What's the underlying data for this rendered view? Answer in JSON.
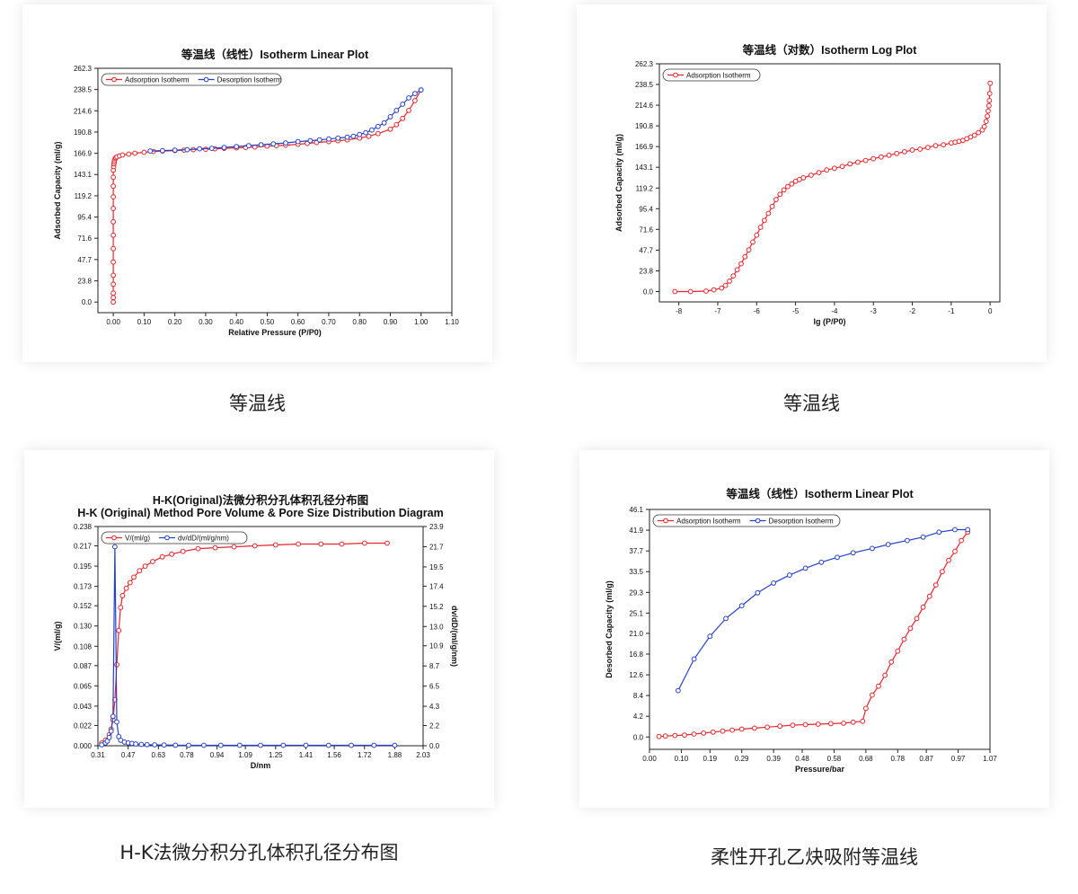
{
  "captions": [
    "等温线",
    "等温线",
    "H-K法微分积分孔体积孔径分布图",
    "柔性开孔乙炔吸附等温线"
  ],
  "chart_data": [
    {
      "type": "line",
      "title": "等温线（线性）Isotherm Linear Plot",
      "xlabel": "Relative Pressure (P/P0)",
      "ylabel": "Adsorbed Capacity (ml/g)",
      "xlim": [
        -0.05,
        1.1
      ],
      "ylim": [
        -11.9,
        262.3
      ],
      "xticks": [
        "0.00",
        "0.10",
        "0.20",
        "0.30",
        "0.40",
        "0.50",
        "0.60",
        "0.70",
        "0.80",
        "0.90",
        "1.00",
        "1.10"
      ],
      "yticks": [
        "0.0",
        "23.8",
        "47.7",
        "71.6",
        "95.4",
        "119.2",
        "143.1",
        "166.9",
        "190.8",
        "214.6",
        "238.5",
        "262.3"
      ],
      "legend": "top-left",
      "series": [
        {
          "name": "Adsorption Isotherm",
          "color": "#e8242c",
          "x": [
            0,
            0,
            0,
            0,
            0,
            0,
            0,
            0,
            0,
            0,
            0,
            0,
            0,
            0,
            0.001,
            0.002,
            0.003,
            0.004,
            0.006,
            0.008,
            0.012,
            0.02,
            0.03,
            0.05,
            0.07,
            0.1,
            0.13,
            0.16,
            0.2,
            0.23,
            0.26,
            0.3,
            0.33,
            0.36,
            0.4,
            0.43,
            0.46,
            0.5,
            0.53,
            0.56,
            0.6,
            0.63,
            0.66,
            0.7,
            0.73,
            0.76,
            0.8,
            0.83,
            0.86,
            0.9,
            0.92,
            0.94,
            0.96,
            0.98,
            1.0
          ],
          "y": [
            0,
            5,
            10,
            20,
            30,
            45,
            60,
            75,
            90,
            105,
            118,
            130,
            140,
            148,
            152,
            155,
            157,
            159,
            161,
            162,
            163,
            164,
            165,
            166,
            167,
            168,
            169,
            169.5,
            170,
            170.5,
            171,
            171.5,
            172,
            172.5,
            173,
            173.5,
            174,
            175,
            175.5,
            176,
            177,
            178,
            179,
            180,
            181,
            182,
            184,
            186,
            189,
            194,
            199,
            206,
            215,
            226,
            238
          ]
        },
        {
          "name": "Desorption Isotherm",
          "color": "#2540c8",
          "x": [
            1.0,
            0.98,
            0.96,
            0.94,
            0.92,
            0.9,
            0.88,
            0.86,
            0.84,
            0.82,
            0.8,
            0.78,
            0.76,
            0.73,
            0.7,
            0.67,
            0.64,
            0.6,
            0.56,
            0.52,
            0.48,
            0.44,
            0.4,
            0.36,
            0.32,
            0.28,
            0.24,
            0.2,
            0.16,
            0.12
          ],
          "y": [
            238,
            234,
            229,
            222,
            215,
            208,
            201,
            197,
            193,
            190,
            188,
            186,
            185,
            184,
            183,
            182,
            181,
            180,
            178.5,
            177.5,
            176.5,
            175.5,
            174.5,
            173.5,
            172.5,
            172,
            171,
            170.5,
            170,
            169.5
          ]
        }
      ]
    },
    {
      "type": "line",
      "title": "等温线（对数）Isotherm Log Plot",
      "xlabel": "lg (P/P0)",
      "ylabel": "Adsorbed Capacity (ml/g)",
      "xlim": [
        -8.5,
        0.25
      ],
      "ylim": [
        -11.9,
        262.3
      ],
      "xticks": [
        "-8",
        "-7",
        "-6",
        "-5",
        "-4",
        "-3",
        "-2",
        "-1",
        "0"
      ],
      "yticks": [
        "0.0",
        "23.8",
        "47.7",
        "71.6",
        "95.4",
        "119.2",
        "143.1",
        "166.9",
        "190.8",
        "214.6",
        "238.5",
        "262.3"
      ],
      "legend": "top-left",
      "series": [
        {
          "name": "Adsorption Isotherm",
          "color": "#e8242c",
          "x": [
            -8.1,
            -7.7,
            -7.3,
            -7.1,
            -6.9,
            -6.8,
            -6.7,
            -6.6,
            -6.5,
            -6.4,
            -6.3,
            -6.2,
            -6.1,
            -6.0,
            -5.9,
            -5.8,
            -5.7,
            -5.6,
            -5.5,
            -5.4,
            -5.3,
            -5.2,
            -5.1,
            -5.0,
            -4.9,
            -4.8,
            -4.6,
            -4.4,
            -4.2,
            -4.0,
            -3.8,
            -3.6,
            -3.4,
            -3.2,
            -3.0,
            -2.8,
            -2.6,
            -2.4,
            -2.2,
            -2.0,
            -1.8,
            -1.6,
            -1.4,
            -1.2,
            -1.0,
            -0.9,
            -0.8,
            -0.7,
            -0.6,
            -0.5,
            -0.4,
            -0.3,
            -0.2,
            -0.15,
            -0.1,
            -0.07,
            -0.05,
            -0.03,
            -0.02,
            -0.01,
            0
          ],
          "y": [
            0,
            0,
            0.5,
            2,
            4,
            7,
            12,
            18,
            25,
            32,
            40,
            48,
            57,
            65,
            74,
            82,
            90,
            98,
            106,
            112,
            117,
            121,
            124,
            127,
            129,
            131,
            134,
            137,
            140,
            142,
            144,
            147,
            149,
            151,
            153,
            155,
            157,
            159,
            161,
            163,
            164,
            166,
            168,
            169,
            171,
            172,
            173,
            174,
            176,
            178,
            180,
            183,
            186,
            190,
            196,
            202,
            208,
            214,
            220,
            228,
            240
          ]
        }
      ]
    },
    {
      "type": "line",
      "title": "H-K(Original)法微分积分孔体积孔径分布图",
      "subtitle": "H-K (Original) Method Pore Volume & Pore Size Distribution Diagram",
      "xlabel": "D/nm",
      "ylabel": "V/(ml/g)",
      "y2label": "dv/dD/(ml/g/nm)",
      "xlim": [
        0.31,
        2.03
      ],
      "ylim": [
        0,
        0.238
      ],
      "y2lim": [
        0,
        23.9
      ],
      "xticks": [
        "0.31",
        "0.47",
        "0.63",
        "0.78",
        "0.94",
        "1.09",
        "1.25",
        "1.41",
        "1.56",
        "1.72",
        "1.88",
        "2.03"
      ],
      "yticks": [
        "0.000",
        "0.022",
        "0.043",
        "0.065",
        "0.087",
        "0.108",
        "0.130",
        "0.152",
        "0.173",
        "0.195",
        "0.217",
        "0.238"
      ],
      "y2ticks": [
        "0.0",
        "2.2",
        "4.3",
        "6.5",
        "8.7",
        "10.9",
        "13.0",
        "15.2",
        "17.4",
        "19.5",
        "21.7",
        "23.9"
      ],
      "legend": "top-left",
      "series": [
        {
          "name": "V/(ml/g)",
          "color": "#e8242c",
          "axis": "left",
          "x": [
            0.33,
            0.35,
            0.37,
            0.38,
            0.39,
            0.4,
            0.41,
            0.42,
            0.43,
            0.44,
            0.46,
            0.48,
            0.5,
            0.53,
            0.56,
            0.6,
            0.65,
            0.7,
            0.76,
            0.84,
            0.93,
            1.03,
            1.14,
            1.25,
            1.37,
            1.49,
            1.6,
            1.72,
            1.84
          ],
          "y": [
            0.003,
            0.006,
            0.012,
            0.018,
            0.028,
            0.05,
            0.088,
            0.125,
            0.15,
            0.163,
            0.171,
            0.177,
            0.183,
            0.19,
            0.195,
            0.2,
            0.205,
            0.208,
            0.211,
            0.214,
            0.215,
            0.216,
            0.217,
            0.218,
            0.219,
            0.219,
            0.219,
            0.22,
            0.22
          ]
        },
        {
          "name": "dv/dD/(ml/g/nm)",
          "color": "#2540c8",
          "axis": "right",
          "x": [
            0.33,
            0.35,
            0.36,
            0.37,
            0.38,
            0.39,
            0.4,
            0.41,
            0.42,
            0.43,
            0.45,
            0.47,
            0.49,
            0.51,
            0.54,
            0.57,
            0.61,
            0.66,
            0.72,
            0.79,
            0.87,
            0.96,
            1.06,
            1.17,
            1.29,
            1.41,
            1.53,
            1.65,
            1.77,
            1.88
          ],
          "y": [
            0.1,
            0.3,
            0.5,
            0.9,
            1.6,
            3.2,
            21.7,
            2.6,
            1.0,
            0.6,
            0.4,
            0.3,
            0.25,
            0.2,
            0.15,
            0.12,
            0.1,
            0.08,
            0.06,
            0.05,
            0.05,
            0.05,
            0.05,
            0.05,
            0.05,
            0.05,
            0.05,
            0.05,
            0.05,
            0.05
          ]
        }
      ]
    },
    {
      "type": "line",
      "title": "等温线（线性）Isotherm Linear Plot",
      "xlabel": "Pressure/bar",
      "ylabel": "Desorbed Capacity (ml/g)",
      "xlim": [
        0.0,
        1.07
      ],
      "ylim": [
        -2.5,
        46.1
      ],
      "xticks": [
        "0.00",
        "0.10",
        "0.19",
        "0.29",
        "0.39",
        "0.48",
        "0.58",
        "0.68",
        "0.78",
        "0.87",
        "0.97",
        "1.07"
      ],
      "yticks": [
        "0.0",
        "4.2",
        "8.4",
        "12.6",
        "16.8",
        "21.0",
        "25.1",
        "29.3",
        "33.5",
        "37.7",
        "41.9",
        "46.1"
      ],
      "legend": "top-left",
      "series": [
        {
          "name": "Adsorption Isotherm",
          "color": "#e8242c",
          "x": [
            0.03,
            0.05,
            0.08,
            0.11,
            0.14,
            0.17,
            0.2,
            0.23,
            0.26,
            0.29,
            0.33,
            0.37,
            0.41,
            0.45,
            0.49,
            0.53,
            0.57,
            0.61,
            0.64,
            0.67,
            0.68,
            0.7,
            0.72,
            0.74,
            0.76,
            0.78,
            0.8,
            0.82,
            0.84,
            0.86,
            0.88,
            0.9,
            0.92,
            0.94,
            0.96,
            0.98,
            1.0
          ],
          "y": [
            0.1,
            0.2,
            0.3,
            0.4,
            0.6,
            0.8,
            1.0,
            1.2,
            1.4,
            1.6,
            1.8,
            2.0,
            2.2,
            2.4,
            2.5,
            2.6,
            2.7,
            2.8,
            3.0,
            3.2,
            5.8,
            8.5,
            10.3,
            12.5,
            15.2,
            17.4,
            19.8,
            22.0,
            24.0,
            26.3,
            28.5,
            30.8,
            33.5,
            35.8,
            37.6,
            39.8,
            41.5
          ]
        },
        {
          "name": "Desorption Isotherm",
          "color": "#2540c8",
          "x": [
            1.0,
            0.96,
            0.91,
            0.86,
            0.81,
            0.75,
            0.7,
            0.64,
            0.59,
            0.54,
            0.49,
            0.44,
            0.39,
            0.34,
            0.29,
            0.24,
            0.19,
            0.14,
            0.09
          ],
          "y": [
            42.0,
            42.0,
            41.5,
            40.5,
            39.8,
            39.0,
            38.2,
            37.3,
            36.4,
            35.4,
            34.2,
            32.8,
            31.2,
            29.2,
            26.6,
            24.0,
            20.4,
            15.8,
            9.4
          ]
        }
      ]
    }
  ]
}
